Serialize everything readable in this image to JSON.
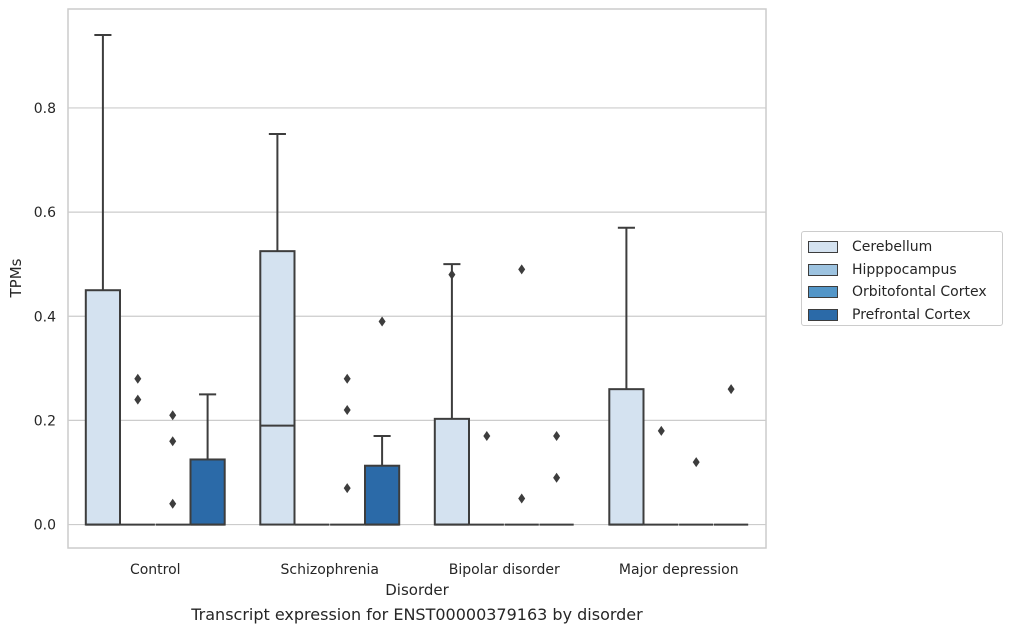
{
  "chart_data": {
    "type": "box",
    "title": "",
    "caption": "Transcript expression for ENST00000379163 by disorder",
    "xlabel": "Disorder",
    "ylabel": "TPMs",
    "ylim": [
      -0.045,
      0.99
    ],
    "yticks": [
      "0.0",
      "0.2",
      "0.4",
      "0.6",
      "0.8"
    ],
    "grid": true,
    "legend_position": "right",
    "categories": [
      "Control",
      "Schizophrenia",
      "Bipolar disorder",
      "Major depression"
    ],
    "series": [
      {
        "name": "Cerebellum",
        "color": "#d4e2f0",
        "boxes": [
          {
            "q1": 0.0,
            "median": 0.0,
            "q3": 0.45,
            "whisker_low": 0.0,
            "whisker_high": 0.94,
            "outliers": []
          },
          {
            "q1": 0.0,
            "median": 0.19,
            "q3": 0.525,
            "whisker_low": 0.0,
            "whisker_high": 0.75,
            "outliers": []
          },
          {
            "q1": 0.0,
            "median": 0.0,
            "q3": 0.203,
            "whisker_low": 0.0,
            "whisker_high": 0.5,
            "outliers": [
              0.48
            ]
          },
          {
            "q1": 0.0,
            "median": 0.0,
            "q3": 0.26,
            "whisker_low": 0.0,
            "whisker_high": 0.57,
            "outliers": []
          }
        ]
      },
      {
        "name": "Hipppocampus",
        "color": "#9dc3e0",
        "boxes": [
          {
            "q1": 0.0,
            "median": 0.0,
            "q3": 0.0,
            "whisker_low": 0.0,
            "whisker_high": 0.0,
            "outliers": [
              0.28,
              0.24
            ]
          },
          {
            "q1": 0.0,
            "median": 0.0,
            "q3": 0.0,
            "whisker_low": 0.0,
            "whisker_high": 0.0,
            "outliers": []
          },
          {
            "q1": 0.0,
            "median": 0.0,
            "q3": 0.0,
            "whisker_low": 0.0,
            "whisker_high": 0.0,
            "outliers": [
              0.17
            ]
          },
          {
            "q1": 0.0,
            "median": 0.0,
            "q3": 0.0,
            "whisker_low": 0.0,
            "whisker_high": 0.0,
            "outliers": [
              0.18
            ]
          }
        ]
      },
      {
        "name": "Orbitofontal Cortex",
        "color": "#5396c8",
        "boxes": [
          {
            "q1": 0.0,
            "median": 0.0,
            "q3": 0.0,
            "whisker_low": 0.0,
            "whisker_high": 0.0,
            "outliers": [
              0.21,
              0.16,
              0.04
            ]
          },
          {
            "q1": 0.0,
            "median": 0.0,
            "q3": 0.0,
            "whisker_low": 0.0,
            "whisker_high": 0.0,
            "outliers": [
              0.28,
              0.22,
              0.07
            ]
          },
          {
            "q1": 0.0,
            "median": 0.0,
            "q3": 0.0,
            "whisker_low": 0.0,
            "whisker_high": 0.0,
            "outliers": [
              0.49,
              0.05
            ]
          },
          {
            "q1": 0.0,
            "median": 0.0,
            "q3": 0.0,
            "whisker_low": 0.0,
            "whisker_high": 0.0,
            "outliers": [
              0.12
            ]
          }
        ]
      },
      {
        "name": "Prefrontal Cortex",
        "color": "#2b6aa8",
        "boxes": [
          {
            "q1": 0.0,
            "median": 0.0,
            "q3": 0.125,
            "whisker_low": 0.0,
            "whisker_high": 0.25,
            "outliers": []
          },
          {
            "q1": 0.0,
            "median": 0.0,
            "q3": 0.113,
            "whisker_low": 0.0,
            "whisker_high": 0.17,
            "outliers": [
              0.39
            ]
          },
          {
            "q1": 0.0,
            "median": 0.0,
            "q3": 0.0,
            "whisker_low": 0.0,
            "whisker_high": 0.0,
            "outliers": [
              0.17,
              0.09
            ]
          },
          {
            "q1": 0.0,
            "median": 0.0,
            "q3": 0.0,
            "whisker_low": 0.0,
            "whisker_high": 0.0,
            "outliers": [
              0.26
            ]
          }
        ]
      }
    ]
  }
}
